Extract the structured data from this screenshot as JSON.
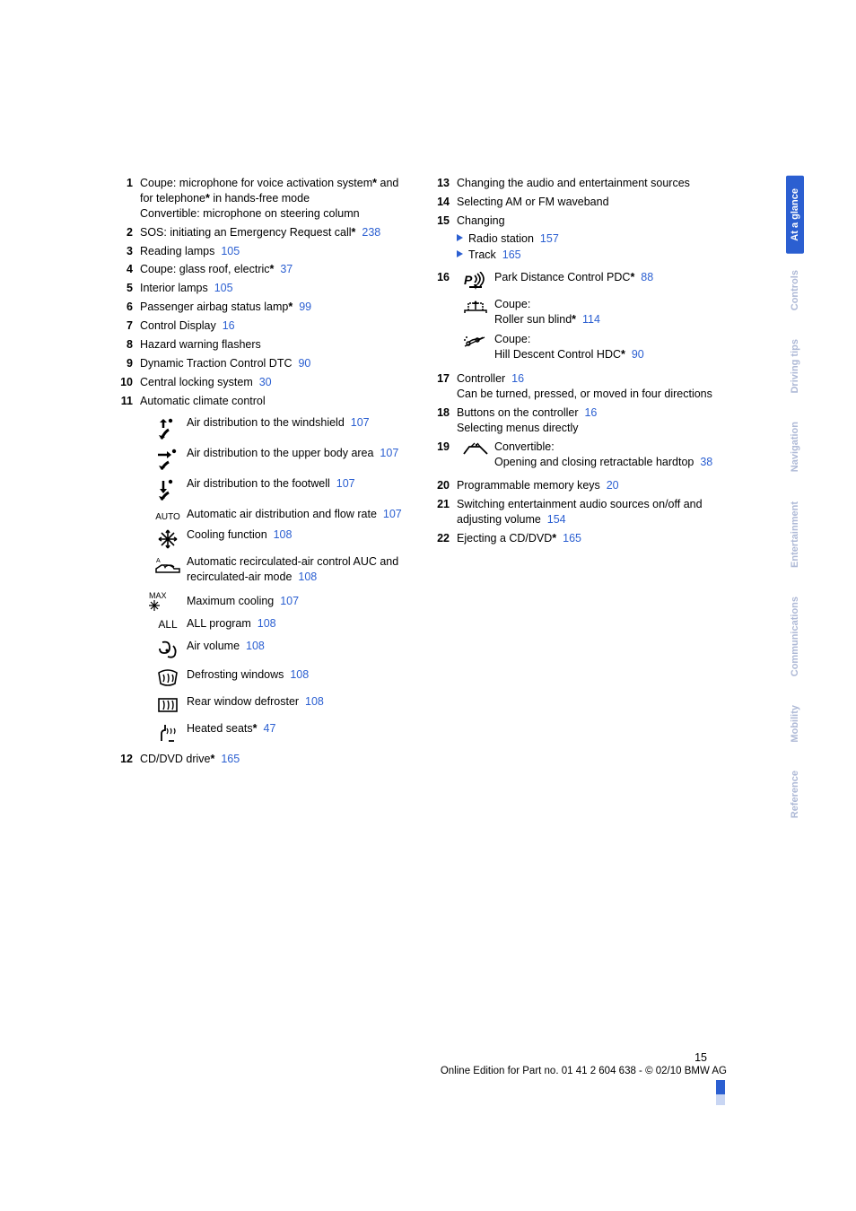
{
  "link_color": "#2b5fd1",
  "tabs": [
    {
      "label": "At a glance",
      "active": true
    },
    {
      "label": "Controls",
      "active": false
    },
    {
      "label": "Driving tips",
      "active": false
    },
    {
      "label": "Navigation",
      "active": false
    },
    {
      "label": "Entertainment",
      "active": false
    },
    {
      "label": "Communications",
      "active": false
    },
    {
      "label": "Mobility",
      "active": false
    },
    {
      "label": "Reference",
      "active": false
    }
  ],
  "left": {
    "i1": {
      "n": "1",
      "t1": "Coupe: microphone for voice activation system",
      "t2": " and for telephone",
      "t3": " in hands-free mode",
      "t4": "Convertible: microphone on steering column"
    },
    "i2": {
      "n": "2",
      "t": "SOS: initiating an Emergency Request call",
      "p": "238"
    },
    "i3": {
      "n": "3",
      "t": "Reading lamps",
      "p": "105"
    },
    "i4": {
      "n": "4",
      "t": "Coupe: glass roof, electric",
      "p": "37"
    },
    "i5": {
      "n": "5",
      "t": "Interior lamps",
      "p": "105"
    },
    "i6": {
      "n": "6",
      "t": "Passenger airbag status lamp",
      "p": "99"
    },
    "i7": {
      "n": "7",
      "t": "Control Display",
      "p": "16"
    },
    "i8": {
      "n": "8",
      "t": "Hazard warning flashers"
    },
    "i9": {
      "n": "9",
      "t": "Dynamic Traction Control DTC",
      "p": "90"
    },
    "i10": {
      "n": "10",
      "t": "Central locking system",
      "p": "30"
    },
    "i11": {
      "n": "11",
      "t": "Automatic climate control"
    },
    "icons": {
      "a": {
        "t": "Air distribution to the windshield",
        "p": "107"
      },
      "b": {
        "t": "Air distribution to the upper body area",
        "p": "107"
      },
      "c": {
        "t": "Air distribution to the footwell",
        "p": "107"
      },
      "d": {
        "label": "AUTO",
        "t": "Automatic air distribution and flow rate",
        "p": "107"
      },
      "e": {
        "t": "Cooling function",
        "p": "108"
      },
      "f": {
        "t": "Automatic recirculated-air control AUC and recirculated-air mode",
        "p": "108"
      },
      "g": {
        "label": "MAX",
        "t": "Maximum cooling",
        "p": "107"
      },
      "h": {
        "label": "ALL",
        "t": "ALL program",
        "p": "108"
      },
      "i": {
        "t": "Air volume",
        "p": "108"
      },
      "j": {
        "t": "Defrosting windows",
        "p": "108"
      },
      "k": {
        "t": "Rear window defroster",
        "p": "108"
      },
      "l": {
        "t": "Heated seats",
        "p": "47"
      }
    },
    "i12": {
      "n": "12",
      "t": "CD/DVD drive",
      "p": "165"
    }
  },
  "right": {
    "i13": {
      "n": "13",
      "t": "Changing the audio and entertainment sources"
    },
    "i14": {
      "n": "14",
      "t": "Selecting AM or FM waveband"
    },
    "i15": {
      "n": "15",
      "t": "Changing",
      "a": {
        "t": "Radio station",
        "p": "157"
      },
      "b": {
        "t": "Track",
        "p": "165"
      }
    },
    "i16": {
      "n": "16",
      "a": {
        "t": "Park Distance Control PDC",
        "p": "88"
      },
      "b": {
        "t1": "Coupe:",
        "t2": "Roller sun blind",
        "p": "114"
      },
      "c": {
        "t1": "Coupe:",
        "t2": "Hill Descent Control HDC",
        "p": "90"
      }
    },
    "i17": {
      "n": "17",
      "t": "Controller",
      "p": "16",
      "t2": "Can be turned, pressed, or moved in four directions"
    },
    "i18": {
      "n": "18",
      "t": "Buttons on the controller",
      "p": "16",
      "t2": "Selecting menus directly"
    },
    "i19": {
      "n": "19",
      "t1": "Convertible:",
      "t2": "Opening and closing retractable hardtop",
      "p": "38"
    },
    "i20": {
      "n": "20",
      "t": "Programmable memory keys",
      "p": "20"
    },
    "i21": {
      "n": "21",
      "t": "Switching entertainment audio sources on/off and adjusting volume",
      "p": "154"
    },
    "i22": {
      "n": "22",
      "t": "Ejecting a CD/DVD",
      "p": "165"
    }
  },
  "footer": {
    "page": "15",
    "line": "Online Edition for Part no. 01 41 2 604 638 - © 02/10 BMW AG"
  }
}
